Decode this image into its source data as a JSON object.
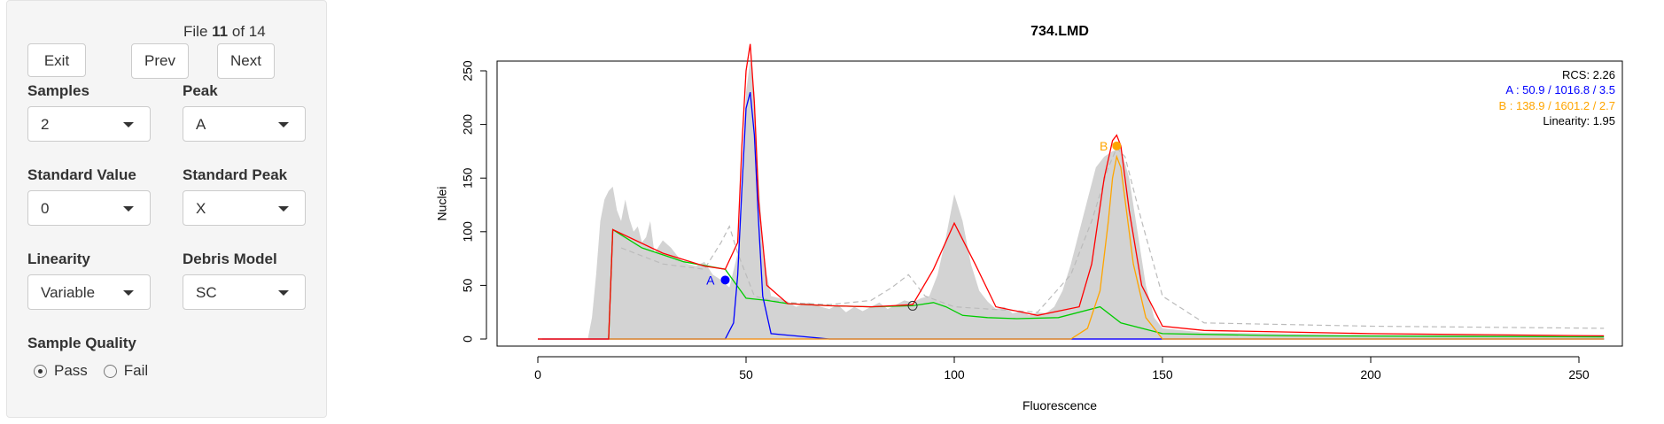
{
  "file": {
    "prefix": "File",
    "current": "11",
    "sep": "of",
    "total": "14"
  },
  "buttons": {
    "exit": "Exit",
    "prev": "Prev",
    "next": "Next"
  },
  "controls": {
    "samples": {
      "label": "Samples",
      "value": "2"
    },
    "peak": {
      "label": "Peak",
      "value": "A"
    },
    "standard_value": {
      "label": "Standard Value",
      "value": "0"
    },
    "standard_peak": {
      "label": "Standard Peak",
      "value": "X"
    },
    "linearity": {
      "label": "Linearity",
      "value": "Variable"
    },
    "debris_model": {
      "label": "Debris Model",
      "value": "SC"
    }
  },
  "sample_quality": {
    "label": "Sample Quality",
    "options": [
      "Pass",
      "Fail"
    ],
    "selected": "Pass"
  },
  "colors": {
    "peak_a": "#0000ff",
    "peak_b": "#ffa500",
    "fit": "#ff0000",
    "debris": "#00cc00",
    "histogram": "#d3d3d3"
  },
  "stats": {
    "rcs_label": "RCS:",
    "rcs_value": "2.26",
    "a_label": "A :",
    "a_value": "50.9 / 1016.8 / 3.5",
    "b_label": "B :",
    "b_value": "138.9 / 1601.2 / 2.7",
    "linearity_label": "Linearity:",
    "linearity_value": "1.95"
  },
  "chart_data": {
    "type": "area",
    "title": "734.LMD",
    "xlabel": "Fluorescence",
    "ylabel": "Nuclei",
    "xlim": [
      0,
      256
    ],
    "ylim": [
      0,
      270
    ],
    "x_ticks": [
      0,
      50,
      100,
      150,
      200,
      250
    ],
    "y_ticks": [
      0,
      50,
      100,
      150,
      200,
      250
    ],
    "grid": false,
    "peak_labels": [
      {
        "name": "A",
        "x": 45,
        "y": 55
      },
      {
        "name": "B",
        "x": 139,
        "y": 180
      }
    ],
    "open_marker": {
      "x": 90,
      "y": 31
    },
    "series": [
      {
        "name": "histogram",
        "x": [
          12,
          13,
          14,
          15,
          16,
          17,
          18,
          19,
          20,
          21,
          22,
          23,
          24,
          25,
          26,
          27,
          28,
          30,
          32,
          34,
          36,
          38,
          40,
          42,
          44,
          46,
          48,
          49,
          50,
          51,
          52,
          53,
          54,
          55,
          56,
          58,
          60,
          62,
          65,
          68,
          70,
          72,
          74,
          76,
          78,
          80,
          82,
          84,
          86,
          88,
          90,
          92,
          94,
          96,
          98,
          100,
          102,
          104,
          106,
          108,
          110,
          112,
          114,
          116,
          118,
          120,
          122,
          124,
          126,
          128,
          130,
          132,
          134,
          136,
          138,
          140,
          142,
          144,
          146,
          148,
          150,
          160,
          180,
          200,
          220,
          240,
          256
        ],
        "y": [
          0,
          20,
          60,
          110,
          130,
          138,
          142,
          120,
          110,
          130,
          112,
          100,
          105,
          90,
          95,
          110,
          80,
          92,
          85,
          75,
          70,
          68,
          72,
          60,
          55,
          48,
          80,
          150,
          230,
          260,
          230,
          150,
          90,
          60,
          40,
          38,
          35,
          30,
          34,
          30,
          28,
          32,
          25,
          30,
          26,
          30,
          34,
          28,
          32,
          36,
          34,
          38,
          40,
          60,
          95,
          135,
          110,
          70,
          45,
          35,
          28,
          30,
          24,
          26,
          22,
          25,
          24,
          30,
          45,
          70,
          100,
          130,
          160,
          170,
          175,
          178,
          150,
          100,
          50,
          20,
          10,
          6,
          5,
          4,
          4,
          3,
          2
        ]
      },
      {
        "name": "fit",
        "x": [
          0,
          12,
          17,
          18,
          30,
          40,
          45,
          48,
          49,
          50,
          51,
          52,
          53,
          55,
          60,
          70,
          80,
          90,
          95,
          100,
          105,
          110,
          120,
          130,
          133,
          136,
          138,
          139,
          140,
          142,
          145,
          150,
          160,
          200,
          256
        ],
        "y": [
          0,
          0,
          0,
          102,
          80,
          68,
          65,
          90,
          180,
          250,
          275,
          220,
          130,
          50,
          33,
          31,
          30,
          32,
          65,
          108,
          70,
          30,
          22,
          30,
          70,
          150,
          185,
          190,
          180,
          120,
          50,
          12,
          8,
          5,
          3
        ]
      },
      {
        "name": "A",
        "x": [
          0,
          45,
          47,
          48,
          49,
          50,
          51,
          52,
          53,
          54,
          56,
          70,
          256
        ],
        "y": [
          0,
          0,
          15,
          60,
          140,
          215,
          230,
          190,
          110,
          40,
          5,
          0,
          0
        ]
      },
      {
        "name": "B",
        "x": [
          0,
          128,
          132,
          135,
          137,
          138,
          139,
          140,
          141,
          143,
          146,
          150,
          256
        ],
        "y": [
          0,
          0,
          10,
          45,
          110,
          150,
          170,
          160,
          130,
          70,
          20,
          0,
          0
        ]
      },
      {
        "name": "debris",
        "x": [
          17,
          18,
          25,
          35,
          45,
          50,
          55,
          60,
          70,
          80,
          90,
          95,
          98,
          102,
          108,
          115,
          125,
          135,
          140,
          150,
          180,
          256
        ],
        "y": [
          0,
          102,
          85,
          72,
          65,
          38,
          36,
          33,
          31,
          30,
          31,
          34,
          30,
          22,
          20,
          19,
          20,
          30,
          15,
          5,
          3,
          2
        ]
      },
      {
        "name": "model-alt",
        "x": [
          20,
          30,
          40,
          44,
          46,
          48,
          52,
          56,
          60,
          70,
          80,
          85,
          89,
          93,
          100,
          120,
          128,
          133,
          137,
          139,
          141,
          145,
          150,
          160,
          200,
          256
        ],
        "y": [
          85,
          70,
          65,
          90,
          105,
          80,
          40,
          36,
          34,
          32,
          36,
          48,
          60,
          40,
          30,
          25,
          60,
          110,
          160,
          178,
          170,
          110,
          40,
          15,
          12,
          10
        ]
      }
    ]
  }
}
